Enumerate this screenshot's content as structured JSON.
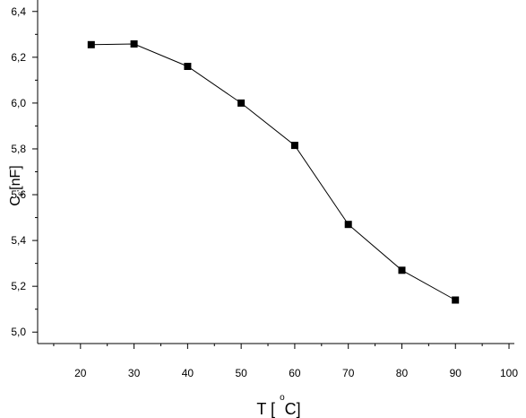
{
  "chart_data": {
    "type": "line",
    "title": "",
    "xlabel": "T [ °C]",
    "xlabel_parts": {
      "main_before": "T [ ",
      "superscript": "o",
      "main_after": "C]"
    },
    "ylabel": "C_ε' [nF]",
    "ylabel_parts": {
      "main": "C",
      "subscript": "ε'",
      "unit": "[nF]"
    },
    "xlim": [
      12,
      101
    ],
    "ylim": [
      4.95,
      6.45
    ],
    "x_ticks": [
      20,
      30,
      40,
      50,
      60,
      70,
      80,
      90,
      100
    ],
    "x_tick_labels": [
      "20",
      "30",
      "40",
      "50",
      "60",
      "70",
      "80",
      "90",
      "100"
    ],
    "y_ticks": [
      5.0,
      5.2,
      5.4,
      5.6,
      5.8,
      6.0,
      6.2,
      6.4
    ],
    "y_tick_labels": [
      "5,0",
      "5,2",
      "5,4",
      "5,6",
      "5,8",
      "6,0",
      "6,2",
      "6,4"
    ],
    "grid": false,
    "legend": "none",
    "marker": "square",
    "line_color": "#000000",
    "series": [
      {
        "x": [
          22,
          30,
          40,
          50,
          60,
          70,
          80,
          90
        ],
        "y": [
          6.255,
          6.258,
          6.16,
          6.0,
          5.815,
          5.47,
          5.27,
          5.14
        ]
      }
    ]
  }
}
